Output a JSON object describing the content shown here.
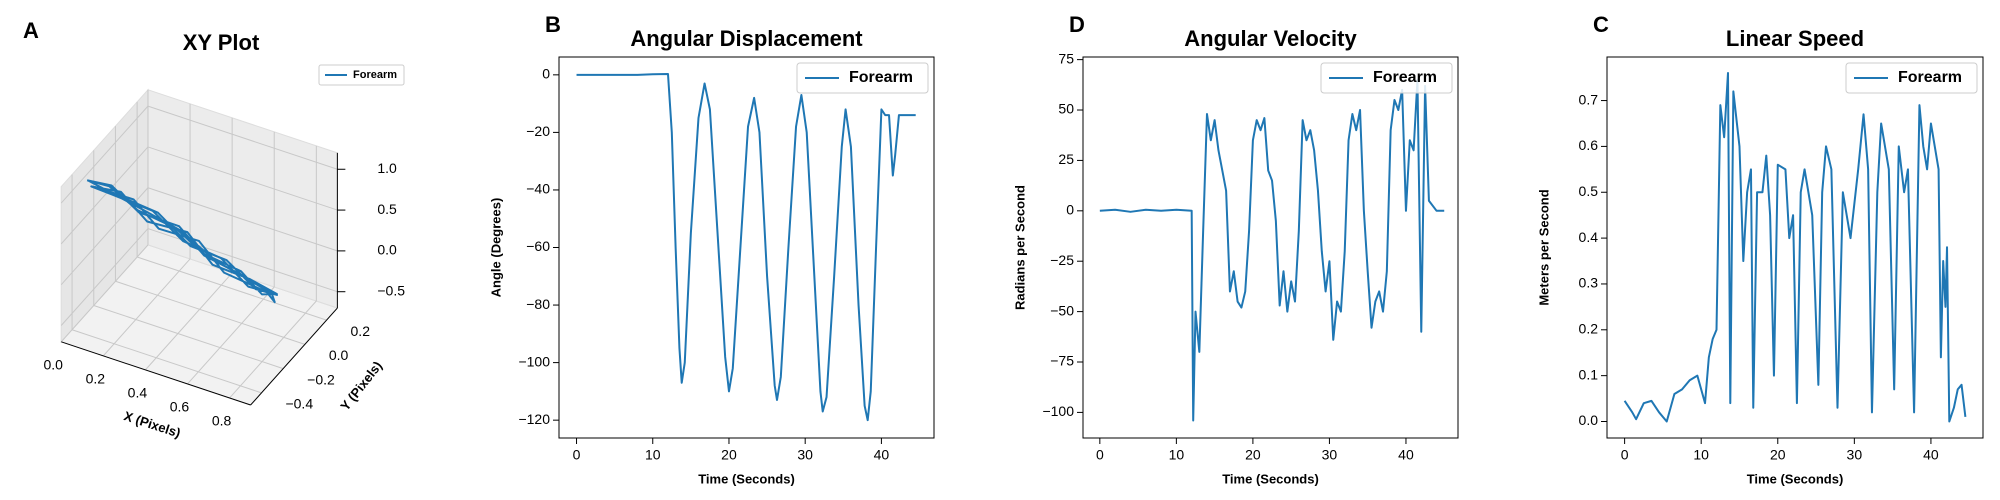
{
  "chart_data": [
    {
      "type": "line3d",
      "panel_label": "A",
      "title": "XY Plot",
      "xlabel": "X (Pixels)",
      "ylabel": "Y (Pixels)",
      "xlim": [
        0,
        0.9
      ],
      "ylim": [
        -0.5,
        0.3
      ],
      "zlim": [
        -0.7,
        1.2
      ],
      "xticks": [
        {
          "value": 0,
          "label": "0.0"
        },
        0.2,
        0.4,
        0.6,
        0.8
      ],
      "yticks": [
        {
          "value": -0.4,
          "label": "−0.4"
        },
        {
          "value": -0.2,
          "label": "−0.2"
        },
        {
          "value": 0,
          "label": "0.0"
        },
        0.2
      ],
      "zticks": [
        {
          "value": -0.5,
          "label": "−0.5"
        },
        {
          "value": 0,
          "label": "0.0"
        },
        0.5,
        {
          "value": 1,
          "label": "1.0"
        }
      ],
      "grid": true,
      "series": [
        {
          "name": "Forearm",
          "color": "#1f77b4",
          "x": [
            0.02,
            0.1,
            0.25,
            0.4,
            0.55,
            0.7,
            0.82,
            0.86,
            0.75,
            0.6,
            0.45,
            0.3,
            0.15,
            0.05,
            0.12,
            0.28,
            0.45,
            0.6,
            0.75,
            0.84,
            0.8,
            0.65,
            0.5,
            0.35,
            0.2,
            0.06,
            0.15,
            0.3,
            0.48,
            0.62,
            0.78,
            0.85,
            0.7,
            0.55,
            0.4,
            0.25,
            0.1,
            0.03,
            0.2,
            0.4,
            0.6,
            0.8,
            0.86,
            0.83
          ],
          "y": [
            -0.3,
            -0.25,
            -0.28,
            -0.22,
            -0.26,
            -0.2,
            -0.24,
            -0.18,
            -0.22,
            -0.27,
            -0.21,
            -0.29,
            -0.24,
            -0.32,
            -0.26,
            -0.2,
            -0.25,
            -0.19,
            -0.23,
            -0.17,
            -0.21,
            -0.26,
            -0.2,
            -0.28,
            -0.22,
            -0.3,
            -0.25,
            -0.19,
            -0.24,
            -0.18,
            -0.22,
            -0.16,
            -0.2,
            -0.25,
            -0.19,
            -0.27,
            -0.23,
            -0.31,
            -0.24,
            -0.2,
            -0.23,
            -0.18,
            -0.2,
            -0.17
          ],
          "z": [
            1.0,
            0.92,
            0.8,
            0.62,
            0.5,
            0.32,
            0.2,
            0.15,
            0.3,
            0.42,
            0.6,
            0.72,
            0.88,
            0.98,
            0.85,
            0.7,
            0.55,
            0.38,
            0.22,
            0.12,
            0.2,
            0.35,
            0.52,
            0.66,
            0.8,
            0.95,
            0.84,
            0.68,
            0.5,
            0.36,
            0.2,
            0.1,
            0.28,
            0.46,
            0.6,
            0.76,
            0.9,
            1.02,
            0.78,
            0.58,
            0.4,
            0.16,
            0.08,
            0.12
          ]
        }
      ]
    },
    {
      "type": "line",
      "panel_label": "B",
      "title": "Angular Displacement",
      "xlabel": "Time (Seconds)",
      "ylabel": "Angle (Degrees)",
      "xlim": [
        -2.3,
        46.9
      ],
      "ylim": [
        -126.2,
        6.2
      ],
      "xticks": [
        0,
        10,
        20,
        30,
        40
      ],
      "yticks": [
        0,
        {
          "value": -20,
          "label": "−20"
        },
        {
          "value": -40,
          "label": "−40"
        },
        {
          "value": -60,
          "label": "−60"
        },
        {
          "value": -80,
          "label": "−80"
        },
        {
          "value": -100,
          "label": "−100"
        },
        {
          "value": -120,
          "label": "−120"
        }
      ],
      "legend": "upper right",
      "x": [
        0,
        2,
        4,
        6,
        8,
        10,
        12,
        12.5,
        13,
        13.5,
        13.8,
        14.2,
        15,
        16,
        16.8,
        17.5,
        18.5,
        19.5,
        20,
        20.5,
        21.5,
        22.5,
        23.3,
        24,
        25,
        26,
        26.3,
        26.8,
        27.8,
        28.8,
        29.5,
        30.2,
        31.2,
        32,
        32.3,
        32.8,
        33.8,
        34.8,
        35.3,
        36,
        37,
        37.8,
        38.2,
        38.6,
        39.3,
        40,
        40.5,
        41,
        41.5,
        41.8,
        42.3,
        43,
        44,
        44.5
      ],
      "series": [
        {
          "name": "Forearm",
          "color": "#1f77b4",
          "values": [
            0,
            0,
            0,
            0,
            0,
            0.2,
            0.3,
            -20,
            -60,
            -95,
            -107,
            -100,
            -55,
            -15,
            -3,
            -12,
            -55,
            -98,
            -110,
            -102,
            -60,
            -18,
            -8,
            -20,
            -70,
            -108,
            -113,
            -105,
            -60,
            -18,
            -7,
            -20,
            -70,
            -110,
            -117,
            -112,
            -70,
            -25,
            -12,
            -25,
            -80,
            -115,
            -120,
            -110,
            -60,
            -12,
            -14,
            -14,
            -35,
            -28,
            -14,
            -14,
            -14,
            -14
          ]
        }
      ]
    },
    {
      "type": "line",
      "panel_label": "D",
      "title": "Angular Velocity",
      "xlabel": "Time (Seconds)",
      "ylabel": "Radians per Second",
      "xlim": [
        -2.2,
        46.8
      ],
      "ylim": [
        -112.7,
        76.3
      ],
      "xticks": [
        0,
        10,
        20,
        30,
        40
      ],
      "yticks": [
        {
          "value": -100,
          "label": "−100"
        },
        {
          "value": -75,
          "label": "−75"
        },
        {
          "value": -50,
          "label": "−50"
        },
        {
          "value": -25,
          "label": "−25"
        },
        0,
        25,
        50,
        75
      ],
      "legend": "upper right",
      "x": [
        0,
        2,
        4,
        6,
        8,
        10,
        12,
        12.2,
        12.5,
        13,
        13.5,
        14,
        14.5,
        15,
        15.5,
        16,
        16.5,
        17,
        17.5,
        18,
        18.5,
        19,
        19.5,
        20,
        20.5,
        21,
        21.5,
        22,
        22.5,
        23,
        23.5,
        24,
        24.5,
        25,
        25.5,
        26,
        26.5,
        27,
        27.5,
        28,
        28.5,
        29,
        29.5,
        30,
        30.5,
        31,
        31.5,
        32,
        32.5,
        33,
        33.5,
        34,
        34.5,
        35,
        35.5,
        36,
        36.5,
        37,
        37.5,
        38,
        38.5,
        39,
        39.5,
        40,
        40.5,
        41,
        41.5,
        42,
        42.5,
        43,
        44,
        45
      ],
      "series": [
        {
          "name": "Forearm",
          "color": "#1f77b4",
          "values": [
            0,
            0.5,
            -0.5,
            0.5,
            0,
            0.5,
            0,
            -104,
            -50,
            -70,
            -10,
            48,
            35,
            45,
            30,
            20,
            10,
            -40,
            -30,
            -45,
            -48,
            -40,
            -10,
            35,
            45,
            40,
            46,
            20,
            15,
            -5,
            -47,
            -30,
            -50,
            -35,
            -45,
            -10,
            45,
            35,
            40,
            30,
            10,
            -20,
            -40,
            -25,
            -64,
            -45,
            -50,
            -20,
            35,
            48,
            40,
            50,
            0,
            -30,
            -58,
            -45,
            -40,
            -50,
            -30,
            40,
            55,
            50,
            60,
            0,
            35,
            30,
            65,
            -60,
            62,
            5,
            0,
            0
          ]
        }
      ]
    },
    {
      "type": "line",
      "panel_label": "C",
      "title": "Linear Speed",
      "xlabel": "Time (Seconds)",
      "ylabel": "Meters per Second",
      "xlim": [
        -2.3,
        46.8
      ],
      "ylim": [
        -0.036,
        0.795
      ],
      "xticks": [
        0,
        10,
        20,
        30,
        40
      ],
      "yticks": [
        {
          "value": 0,
          "label": "0.0"
        },
        0.1,
        0.2,
        0.3,
        0.4,
        0.5,
        0.6,
        0.7
      ],
      "legend": "upper right",
      "x": [
        0,
        1,
        1.5,
        2.5,
        3.5,
        4.5,
        5.5,
        6.5,
        7.5,
        8.5,
        9.5,
        10.5,
        11,
        11.5,
        12,
        12.5,
        13,
        13.5,
        13.8,
        14.2,
        15,
        15.5,
        16,
        16.5,
        16.8,
        17.3,
        18,
        18.5,
        19,
        19.5,
        20,
        21,
        21.5,
        22,
        22.5,
        23,
        23.5,
        24.5,
        25.3,
        25.8,
        26.3,
        27,
        27.8,
        28.5,
        29.5,
        30.5,
        31.2,
        31.8,
        32.3,
        33,
        33.5,
        34.5,
        35.2,
        35.8,
        36.5,
        37,
        37.8,
        38.5,
        39,
        39.5,
        40,
        40.5,
        41,
        41.3,
        41.6,
        41.9,
        42.1,
        42.4,
        43,
        43.5,
        44,
        44.5
      ],
      "series": [
        {
          "name": "Forearm",
          "color": "#1f77b4",
          "values": [
            0.045,
            0.02,
            0.005,
            0.04,
            0.045,
            0.02,
            0.0,
            0.06,
            0.07,
            0.09,
            0.1,
            0.04,
            0.14,
            0.18,
            0.2,
            0.69,
            0.62,
            0.76,
            0.04,
            0.72,
            0.6,
            0.35,
            0.5,
            0.55,
            0.03,
            0.5,
            0.5,
            0.58,
            0.45,
            0.1,
            0.56,
            0.55,
            0.4,
            0.45,
            0.04,
            0.5,
            0.55,
            0.45,
            0.08,
            0.5,
            0.6,
            0.55,
            0.03,
            0.5,
            0.4,
            0.55,
            0.67,
            0.55,
            0.02,
            0.5,
            0.65,
            0.55,
            0.07,
            0.6,
            0.5,
            0.55,
            0.02,
            0.69,
            0.6,
            0.55,
            0.65,
            0.6,
            0.55,
            0.14,
            0.35,
            0.25,
            0.38,
            0.0,
            0.03,
            0.07,
            0.08,
            0.01
          ]
        }
      ]
    }
  ]
}
